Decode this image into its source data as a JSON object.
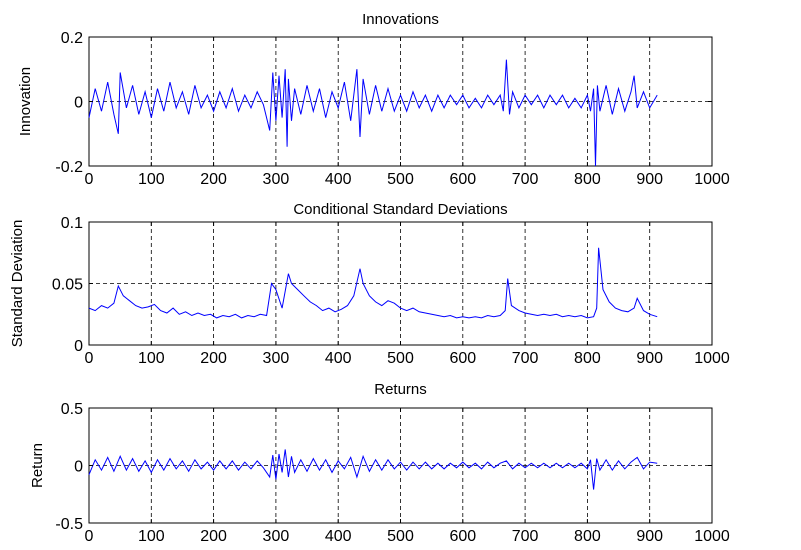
{
  "chart_data": [
    {
      "type": "line",
      "title": "Innovations",
      "xlabel": "",
      "ylabel": "Innovation",
      "xlim": [
        0,
        1000
      ],
      "ylim": [
        -0.2,
        0.2
      ],
      "xticks": [
        "0",
        "100",
        "200",
        "300",
        "400",
        "500",
        "600",
        "700",
        "800",
        "900",
        "1000"
      ],
      "yticks": [
        "-0.2",
        "0",
        "0.2"
      ],
      "grid": "dashed",
      "line_color": "#0000ff",
      "series": [
        {
          "x": [
            0,
            10,
            20,
            30,
            40,
            47,
            50,
            60,
            70,
            80,
            90,
            100,
            110,
            120,
            130,
            140,
            150,
            160,
            170,
            180,
            190,
            200,
            210,
            220,
            230,
            240,
            250,
            260,
            270,
            280,
            290,
            295,
            300,
            305,
            310,
            315,
            318,
            320,
            325,
            330,
            340,
            350,
            360,
            370,
            380,
            390,
            400,
            410,
            420,
            430,
            435,
            440,
            450,
            460,
            470,
            480,
            490,
            500,
            510,
            520,
            530,
            540,
            550,
            560,
            570,
            580,
            590,
            600,
            610,
            620,
            630,
            640,
            650,
            660,
            665,
            670,
            675,
            680,
            690,
            700,
            710,
            720,
            730,
            740,
            750,
            760,
            770,
            780,
            790,
            800,
            805,
            810,
            813,
            816,
            820,
            830,
            840,
            850,
            860,
            870,
            875,
            880,
            890,
            900,
            912
          ],
          "y": [
            -0.05,
            0.04,
            -0.03,
            0.06,
            -0.04,
            -0.1,
            0.09,
            -0.02,
            0.05,
            -0.04,
            0.03,
            -0.05,
            0.04,
            -0.03,
            0.06,
            -0.02,
            0.03,
            -0.04,
            0.05,
            -0.02,
            0.02,
            -0.03,
            0.03,
            -0.02,
            0.04,
            -0.03,
            0.02,
            -0.02,
            0.03,
            -0.01,
            -0.09,
            0.09,
            -0.06,
            0.08,
            -0.05,
            0.1,
            -0.14,
            0.07,
            -0.06,
            0.04,
            -0.04,
            0.05,
            -0.03,
            0.04,
            -0.05,
            0.03,
            -0.02,
            0.06,
            -0.06,
            0.1,
            -0.11,
            0.07,
            -0.04,
            0.05,
            -0.03,
            0.04,
            -0.03,
            0.02,
            -0.03,
            0.03,
            -0.02,
            0.02,
            -0.03,
            0.02,
            -0.02,
            0.02,
            -0.01,
            0.02,
            -0.02,
            0.01,
            -0.02,
            0.02,
            -0.01,
            0.02,
            -0.03,
            0.13,
            -0.04,
            0.03,
            -0.02,
            0.02,
            -0.01,
            0.02,
            -0.02,
            0.02,
            -0.01,
            0.02,
            -0.02,
            0.01,
            -0.02,
            0.02,
            -0.03,
            0.04,
            -0.2,
            0.05,
            -0.03,
            0.05,
            -0.04,
            0.04,
            -0.03,
            0.03,
            0.08,
            -0.02,
            0.03,
            -0.02,
            0.02
          ]
        }
      ]
    },
    {
      "type": "line",
      "title": "Conditional Standard Deviations",
      "xlabel": "",
      "ylabel": "Standard Deviation",
      "xlim": [
        0,
        1000
      ],
      "ylim": [
        0,
        0.1
      ],
      "xticks": [
        "0",
        "100",
        "200",
        "300",
        "400",
        "500",
        "600",
        "700",
        "800",
        "900",
        "1000"
      ],
      "yticks": [
        "0",
        "0.05",
        "0.1"
      ],
      "grid": "dashed",
      "line_color": "#0000ff",
      "series": [
        {
          "x": [
            0,
            10,
            20,
            30,
            40,
            47,
            55,
            65,
            75,
            85,
            95,
            105,
            115,
            125,
            135,
            145,
            155,
            165,
            175,
            185,
            195,
            205,
            215,
            225,
            235,
            245,
            255,
            265,
            275,
            285,
            293,
            300,
            310,
            320,
            325,
            335,
            345,
            355,
            365,
            375,
            385,
            395,
            405,
            415,
            425,
            435,
            440,
            450,
            460,
            470,
            480,
            490,
            500,
            510,
            520,
            530,
            540,
            550,
            560,
            570,
            580,
            590,
            600,
            610,
            620,
            630,
            640,
            650,
            660,
            668,
            672,
            678,
            690,
            700,
            710,
            720,
            730,
            740,
            750,
            760,
            770,
            780,
            790,
            800,
            810,
            815,
            818,
            825,
            835,
            845,
            855,
            865,
            875,
            880,
            890,
            900,
            912
          ],
          "y": [
            0.03,
            0.028,
            0.032,
            0.03,
            0.034,
            0.048,
            0.04,
            0.036,
            0.032,
            0.03,
            0.031,
            0.033,
            0.028,
            0.026,
            0.03,
            0.025,
            0.027,
            0.024,
            0.026,
            0.024,
            0.025,
            0.022,
            0.024,
            0.023,
            0.025,
            0.022,
            0.024,
            0.023,
            0.025,
            0.024,
            0.05,
            0.045,
            0.03,
            0.058,
            0.05,
            0.045,
            0.04,
            0.035,
            0.032,
            0.028,
            0.03,
            0.027,
            0.029,
            0.032,
            0.04,
            0.062,
            0.05,
            0.04,
            0.035,
            0.032,
            0.036,
            0.034,
            0.03,
            0.028,
            0.03,
            0.027,
            0.026,
            0.025,
            0.024,
            0.023,
            0.024,
            0.022,
            0.023,
            0.022,
            0.023,
            0.022,
            0.024,
            0.023,
            0.024,
            0.028,
            0.054,
            0.032,
            0.028,
            0.026,
            0.025,
            0.024,
            0.025,
            0.024,
            0.025,
            0.023,
            0.024,
            0.023,
            0.024,
            0.022,
            0.023,
            0.03,
            0.079,
            0.045,
            0.035,
            0.03,
            0.028,
            0.027,
            0.03,
            0.038,
            0.028,
            0.025,
            0.023
          ]
        }
      ]
    },
    {
      "type": "line",
      "title": "Returns",
      "xlabel": "",
      "ylabel": "Return",
      "xlim": [
        0,
        1000
      ],
      "ylim": [
        -0.5,
        0.5
      ],
      "xticks": [
        "0",
        "100",
        "200",
        "300",
        "400",
        "500",
        "600",
        "700",
        "800",
        "900",
        "1000"
      ],
      "yticks": [
        "-0.5",
        "0",
        "0.5"
      ],
      "grid": "dashed",
      "line_color": "#0000ff",
      "series": [
        {
          "x": [
            0,
            10,
            20,
            30,
            40,
            50,
            60,
            70,
            80,
            90,
            100,
            110,
            120,
            130,
            140,
            150,
            160,
            170,
            180,
            190,
            200,
            210,
            220,
            230,
            240,
            250,
            260,
            270,
            280,
            290,
            295,
            300,
            305,
            310,
            315,
            320,
            325,
            330,
            340,
            350,
            360,
            370,
            380,
            390,
            400,
            410,
            420,
            430,
            440,
            450,
            460,
            470,
            480,
            490,
            500,
            510,
            520,
            530,
            540,
            550,
            560,
            570,
            580,
            590,
            600,
            610,
            620,
            630,
            640,
            650,
            660,
            670,
            680,
            690,
            700,
            710,
            720,
            730,
            740,
            750,
            760,
            770,
            780,
            790,
            800,
            805,
            810,
            815,
            820,
            830,
            840,
            850,
            860,
            870,
            880,
            890,
            900,
            912
          ],
          "y": [
            -0.08,
            0.05,
            -0.04,
            0.07,
            -0.05,
            0.08,
            -0.04,
            0.06,
            -0.05,
            0.04,
            -0.06,
            0.05,
            -0.04,
            0.06,
            -0.03,
            0.04,
            -0.05,
            0.05,
            -0.03,
            0.03,
            -0.04,
            0.04,
            -0.03,
            0.04,
            -0.04,
            0.03,
            -0.03,
            0.04,
            -0.02,
            -0.1,
            0.09,
            -0.12,
            0.1,
            -0.06,
            0.14,
            -0.1,
            0.08,
            -0.06,
            0.05,
            -0.05,
            0.06,
            -0.04,
            0.05,
            -0.06,
            0.04,
            -0.03,
            0.07,
            -0.1,
            0.08,
            -0.05,
            0.05,
            -0.04,
            0.05,
            -0.03,
            0.03,
            -0.04,
            0.03,
            -0.03,
            0.03,
            -0.03,
            0.02,
            -0.03,
            0.02,
            -0.02,
            0.03,
            -0.02,
            0.02,
            -0.03,
            0.03,
            -0.02,
            0.02,
            0.04,
            -0.03,
            0.02,
            -0.02,
            0.02,
            -0.02,
            0.02,
            -0.02,
            0.02,
            -0.02,
            0.02,
            -0.02,
            0.02,
            -0.03,
            0.05,
            -0.21,
            0.06,
            -0.04,
            0.05,
            -0.04,
            0.04,
            -0.03,
            0.03,
            0.07,
            -0.03,
            0.03,
            0.02
          ]
        }
      ]
    }
  ]
}
